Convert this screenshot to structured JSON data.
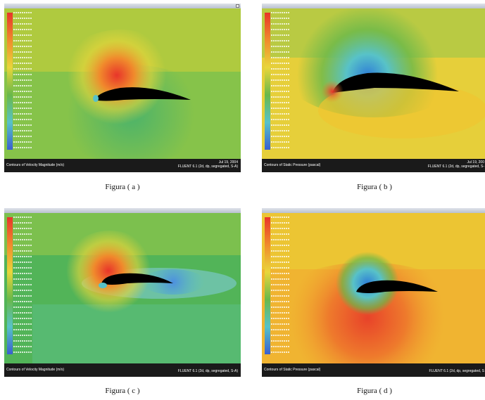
{
  "panels": [
    {
      "footer_left": "Contours of Velocity Magnitude (m/s)",
      "footer_date": "Jul 19, 2004",
      "footer_solver": "FLUENT 6.1 (2d, dp, segregated, S-A)",
      "caption": "Figura ( a )"
    },
    {
      "footer_left": "Contours of Static Pressure (pascal)",
      "footer_date": "Jul 19, 200",
      "footer_solver": "FLUENT 6.1 (2d, dp, segregated, S-",
      "caption": "Figura ( b )"
    },
    {
      "footer_left": "Contours of Velocity Magnitude (m/s)",
      "footer_date": "",
      "footer_solver": "FLUENT 6.1 (2d, dp, segregated, S-A)",
      "caption": "Figura ( c )"
    },
    {
      "footer_left": "Contours of Static Pressure (pascal)",
      "footer_date": "",
      "footer_solver": "FLUENT 6.1 (2d, dp, segregated, S",
      "caption": "Figura ( d )"
    }
  ],
  "colors": {
    "red": "#e8352a",
    "orange": "#f08a2c",
    "yellow": "#e9d63a",
    "green": "#69b84a",
    "cyan": "#58c2c8",
    "blue": "#3a5fd0",
    "airfoil": "#000000"
  }
}
